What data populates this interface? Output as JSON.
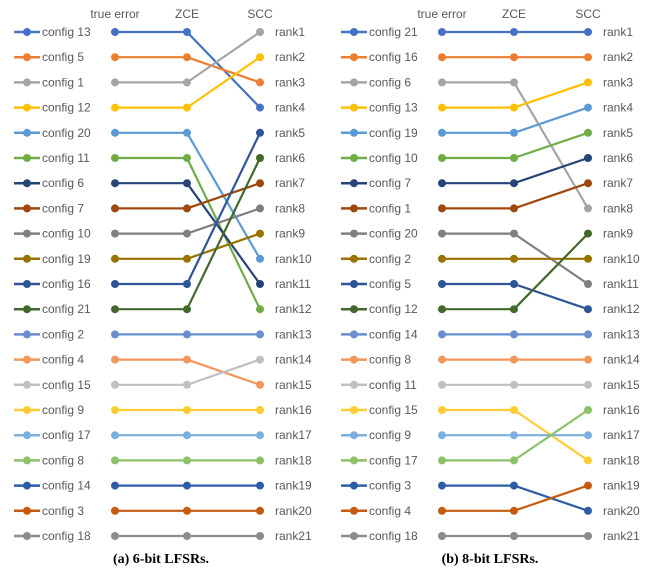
{
  "chart_data": [
    {
      "type": "line",
      "subtype": "slope-rank-chart",
      "caption": "(a) 6-bit LFSRs.",
      "columns": [
        "true error",
        "ZCE",
        "SCC"
      ],
      "rank_labels": [
        "rank1",
        "rank2",
        "rank3",
        "rank4",
        "rank5",
        "rank6",
        "rank7",
        "rank8",
        "rank9",
        "rank10",
        "rank11",
        "rank12",
        "rank13",
        "rank14",
        "rank15",
        "rank16",
        "rank17",
        "rank18",
        "rank19",
        "rank20",
        "rank21"
      ],
      "grid": false,
      "legend": "none",
      "series": [
        {
          "name": "config 13",
          "color": "#4472C4",
          "ranks": [
            1,
            1,
            4
          ]
        },
        {
          "name": "config 5",
          "color": "#ED7D31",
          "ranks": [
            2,
            2,
            3
          ]
        },
        {
          "name": "config 1",
          "color": "#A5A5A5",
          "ranks": [
            3,
            3,
            1
          ]
        },
        {
          "name": "config 12",
          "color": "#FFC000",
          "ranks": [
            4,
            4,
            2
          ]
        },
        {
          "name": "config 20",
          "color": "#5B9BD5",
          "ranks": [
            5,
            5,
            10
          ]
        },
        {
          "name": "config 11",
          "color": "#70AD47",
          "ranks": [
            6,
            6,
            12
          ]
        },
        {
          "name": "config 6",
          "color": "#264478",
          "ranks": [
            7,
            7,
            11
          ]
        },
        {
          "name": "config 7",
          "color": "#9E480E",
          "ranks": [
            8,
            8,
            7
          ]
        },
        {
          "name": "config 10",
          "color": "#7F7F7F",
          "ranks": [
            9,
            9,
            8
          ]
        },
        {
          "name": "config 19",
          "color": "#997300",
          "ranks": [
            10,
            10,
            9
          ]
        },
        {
          "name": "config 16",
          "color": "#2F5597",
          "ranks": [
            11,
            11,
            5
          ]
        },
        {
          "name": "config 21",
          "color": "#43682B",
          "ranks": [
            12,
            12,
            6
          ]
        },
        {
          "name": "config 2",
          "color": "#698ED0",
          "ranks": [
            13,
            13,
            13
          ]
        },
        {
          "name": "config 4",
          "color": "#F1975A",
          "ranks": [
            14,
            14,
            15
          ]
        },
        {
          "name": "config 15",
          "color": "#C0C0C0",
          "ranks": [
            15,
            15,
            14
          ]
        },
        {
          "name": "config 9",
          "color": "#FFCD33",
          "ranks": [
            16,
            16,
            16
          ]
        },
        {
          "name": "config 17",
          "color": "#7CAFDD",
          "ranks": [
            17,
            17,
            17
          ]
        },
        {
          "name": "config 8",
          "color": "#8CC168",
          "ranks": [
            18,
            18,
            18
          ]
        },
        {
          "name": "config 14",
          "color": "#2E5DA8",
          "ranks": [
            19,
            19,
            19
          ]
        },
        {
          "name": "config 3",
          "color": "#C55A11",
          "ranks": [
            20,
            20,
            20
          ]
        },
        {
          "name": "config 18",
          "color": "#8C8C8C",
          "ranks": [
            21,
            21,
            21
          ]
        }
      ]
    },
    {
      "type": "line",
      "subtype": "slope-rank-chart",
      "caption": "(b) 8-bit LFSRs.",
      "columns": [
        "true error",
        "ZCE",
        "SCC"
      ],
      "rank_labels": [
        "rank1",
        "rank2",
        "rank3",
        "rank4",
        "rank5",
        "rank6",
        "rank7",
        "rank8",
        "rank9",
        "rank10",
        "rank11",
        "rank12",
        "rank13",
        "rank14",
        "rank15",
        "rank16",
        "rank17",
        "rank18",
        "rank19",
        "rank20",
        "rank21"
      ],
      "grid": false,
      "legend": "none",
      "series": [
        {
          "name": "config 21",
          "color": "#4472C4",
          "ranks": [
            1,
            1,
            1
          ]
        },
        {
          "name": "config 16",
          "color": "#ED7D31",
          "ranks": [
            2,
            2,
            2
          ]
        },
        {
          "name": "config 6",
          "color": "#A5A5A5",
          "ranks": [
            3,
            3,
            8
          ]
        },
        {
          "name": "config 13",
          "color": "#FFC000",
          "ranks": [
            4,
            4,
            3
          ]
        },
        {
          "name": "config 19",
          "color": "#5B9BD5",
          "ranks": [
            5,
            5,
            4
          ]
        },
        {
          "name": "config 10",
          "color": "#70AD47",
          "ranks": [
            6,
            6,
            5
          ]
        },
        {
          "name": "config 7",
          "color": "#264478",
          "ranks": [
            7,
            7,
            6
          ]
        },
        {
          "name": "config 1",
          "color": "#9E480E",
          "ranks": [
            8,
            8,
            7
          ]
        },
        {
          "name": "config 20",
          "color": "#7F7F7F",
          "ranks": [
            9,
            9,
            11
          ]
        },
        {
          "name": "config 2",
          "color": "#997300",
          "ranks": [
            10,
            10,
            10
          ]
        },
        {
          "name": "config 5",
          "color": "#2F5597",
          "ranks": [
            11,
            11,
            12
          ]
        },
        {
          "name": "config 12",
          "color": "#43682B",
          "ranks": [
            12,
            12,
            9
          ]
        },
        {
          "name": "config 14",
          "color": "#698ED0",
          "ranks": [
            13,
            13,
            13
          ]
        },
        {
          "name": "config 8",
          "color": "#F1975A",
          "ranks": [
            14,
            14,
            14
          ]
        },
        {
          "name": "config 11",
          "color": "#C0C0C0",
          "ranks": [
            15,
            15,
            15
          ]
        },
        {
          "name": "config 15",
          "color": "#FFCD33",
          "ranks": [
            16,
            16,
            18
          ]
        },
        {
          "name": "config 9",
          "color": "#7CAFDD",
          "ranks": [
            17,
            17,
            17
          ]
        },
        {
          "name": "config 17",
          "color": "#8CC168",
          "ranks": [
            18,
            18,
            16
          ]
        },
        {
          "name": "config 3",
          "color": "#2E5DA8",
          "ranks": [
            19,
            19,
            20
          ]
        },
        {
          "name": "config 4",
          "color": "#C55A11",
          "ranks": [
            20,
            20,
            19
          ]
        },
        {
          "name": "config 18",
          "color": "#8C8C8C",
          "ranks": [
            21,
            21,
            21
          ]
        }
      ]
    }
  ]
}
